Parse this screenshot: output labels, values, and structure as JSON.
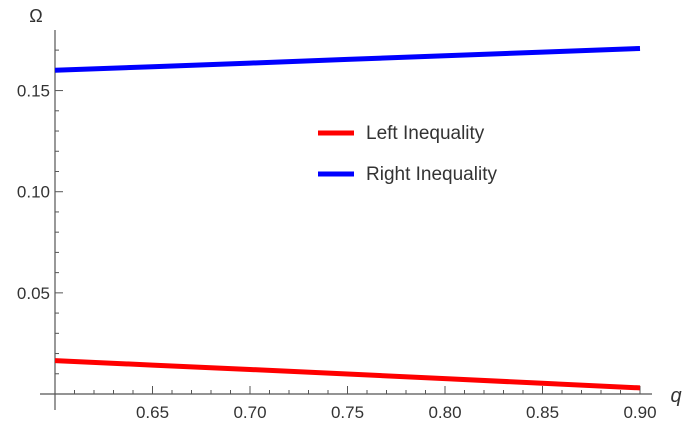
{
  "chart_data": {
    "type": "line",
    "xlabel": "q",
    "ylabel": "Ω",
    "xlim": [
      0.6,
      0.9
    ],
    "ylim": [
      0.0,
      0.175
    ],
    "x_ticks": [
      "0.65",
      "0.70",
      "0.75",
      "0.80",
      "0.85",
      "0.90"
    ],
    "y_ticks": [
      "0.05",
      "0.10",
      "0.15"
    ],
    "legend_position": "center-right",
    "grid": false,
    "series": [
      {
        "name": "Left Inequality",
        "color": "#ff0000",
        "x": [
          0.6,
          0.65,
          0.7,
          0.75,
          0.8,
          0.85,
          0.9
        ],
        "y": [
          0.0165,
          0.0143,
          0.0121,
          0.0099,
          0.0076,
          0.0053,
          0.003
        ]
      },
      {
        "name": "Right Inequality",
        "color": "#0000ff",
        "x": [
          0.6,
          0.65,
          0.7,
          0.75,
          0.8,
          0.85,
          0.9
        ],
        "y": [
          0.16,
          0.1618,
          0.1636,
          0.1654,
          0.1672,
          0.169,
          0.1708
        ]
      }
    ]
  }
}
